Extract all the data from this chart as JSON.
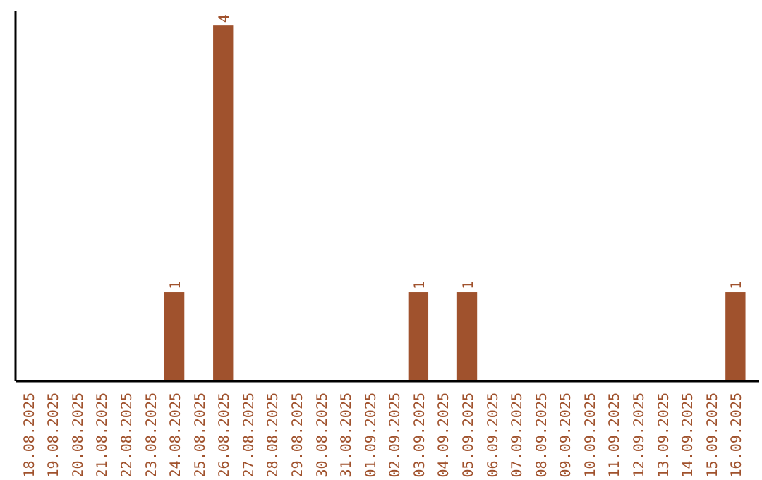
{
  "chart_data": {
    "type": "bar",
    "categories": [
      "18.08.2025",
      "19.08.2025",
      "20.08.2025",
      "21.08.2025",
      "22.08.2025",
      "23.08.2025",
      "24.08.2025",
      "25.08.2025",
      "26.08.2025",
      "27.08.2025",
      "28.08.2025",
      "29.08.2025",
      "30.08.2025",
      "31.08.2025",
      "01.09.2025",
      "02.09.2025",
      "03.09.2025",
      "04.09.2025",
      "05.09.2025",
      "06.09.2025",
      "07.09.2025",
      "08.09.2025",
      "09.09.2025",
      "10.09.2025",
      "11.09.2025",
      "12.09.2025",
      "13.09.2025",
      "14.09.2025",
      "15.09.2025",
      "16.09.2025"
    ],
    "values": [
      0,
      0,
      0,
      0,
      0,
      0,
      1,
      0,
      4,
      0,
      0,
      0,
      0,
      0,
      0,
      0,
      1,
      0,
      1,
      0,
      0,
      0,
      0,
      0,
      0,
      0,
      0,
      0,
      0,
      1
    ],
    "value_labels": [
      null,
      null,
      null,
      null,
      null,
      null,
      "1",
      null,
      "4",
      null,
      null,
      null,
      null,
      null,
      null,
      null,
      "1",
      null,
      "1",
      null,
      null,
      null,
      null,
      null,
      null,
      null,
      null,
      null,
      null,
      "1"
    ],
    "color": "#a0522d"
  }
}
